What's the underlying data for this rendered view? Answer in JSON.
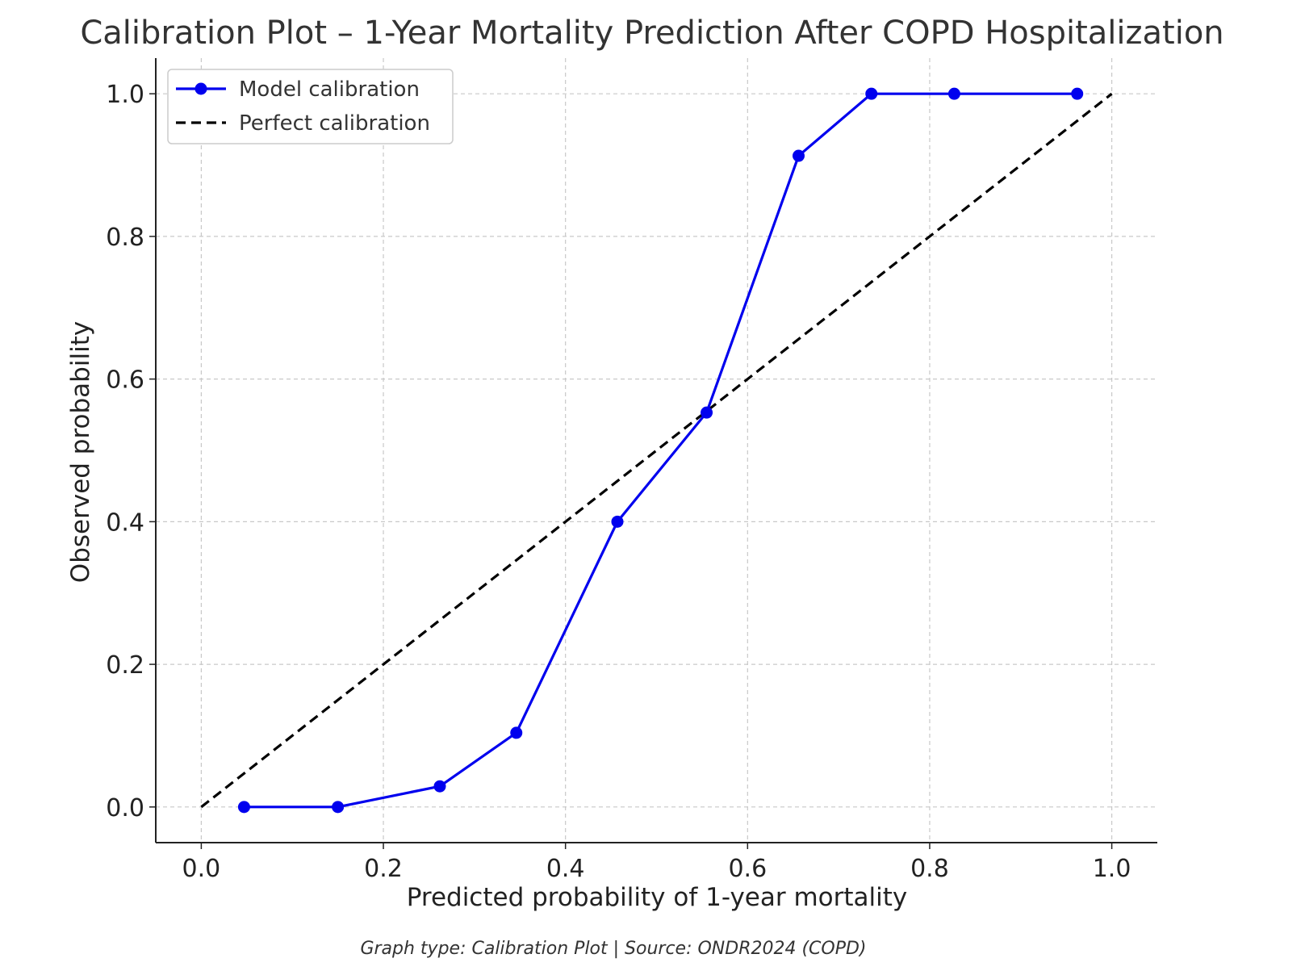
{
  "chart_data": {
    "type": "line",
    "title": "Calibration Plot – 1-Year Mortality Prediction After COPD Hospitalization",
    "xlabel": "Predicted probability of 1-year mortality",
    "ylabel": "Observed probability",
    "xlim": [
      -0.05,
      1.05
    ],
    "ylim": [
      -0.05,
      1.05
    ],
    "x_ticks": [
      0.0,
      0.2,
      0.4,
      0.6,
      0.8,
      1.0
    ],
    "x_tick_labels": [
      "0.0",
      "0.2",
      "0.4",
      "0.6",
      "0.8",
      "1.0"
    ],
    "y_ticks": [
      0.0,
      0.2,
      0.4,
      0.6,
      0.8,
      1.0
    ],
    "y_tick_labels": [
      "0.0",
      "0.2",
      "0.4",
      "0.6",
      "0.8",
      "1.0"
    ],
    "grid": true,
    "legend_position": "top-left",
    "series": [
      {
        "name": "Model calibration",
        "style": "solid-with-markers",
        "color": "#0000ee",
        "x": [
          0.047,
          0.15,
          0.262,
          0.346,
          0.457,
          0.555,
          0.656,
          0.736,
          0.827,
          0.962
        ],
        "y": [
          0.0,
          0.0,
          0.029,
          0.104,
          0.4,
          0.553,
          0.913,
          1.0,
          1.0,
          1.0
        ]
      },
      {
        "name": "Perfect calibration",
        "style": "dashed",
        "color": "#000000",
        "x": [
          0.0,
          1.0
        ],
        "y": [
          0.0,
          1.0
        ]
      }
    ]
  },
  "caption": "Graph type: Calibration Plot | Source: ONDR2024 (COPD)"
}
